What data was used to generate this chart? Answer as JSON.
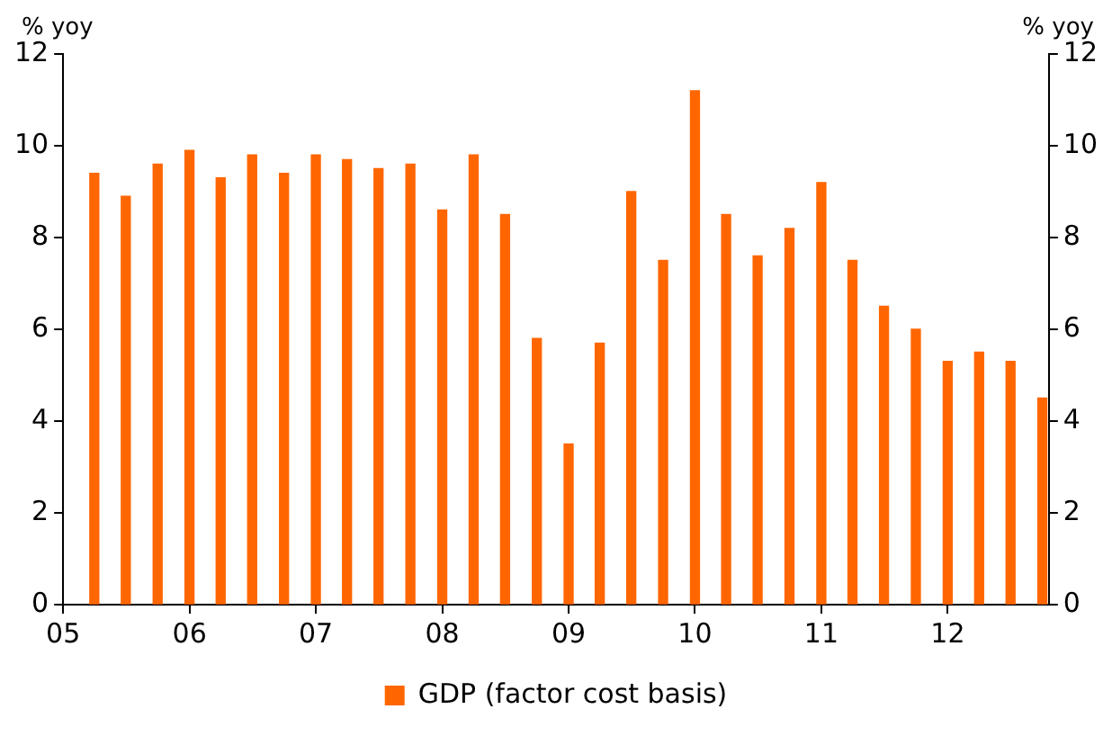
{
  "chart_data": {
    "type": "bar",
    "ylabel": "% yoy",
    "y2label": "% yoy",
    "x": [
      "2005-04",
      "2005-07",
      "2005-10",
      "2006-01",
      "2006-04",
      "2006-07",
      "2006-10",
      "2007-01",
      "2007-04",
      "2007-07",
      "2007-10",
      "2008-01",
      "2008-04",
      "2008-07",
      "2008-10",
      "2009-01",
      "2009-04",
      "2009-07",
      "2009-10",
      "2010-01",
      "2010-04",
      "2010-07",
      "2010-10",
      "2011-01",
      "2011-04",
      "2011-07",
      "2011-10",
      "2012-01",
      "2012-04",
      "2012-07",
      "2012-10"
    ],
    "series": [
      {
        "name": "GDP (factor cost basis)",
        "color": "#ff6600",
        "values": [
          9.4,
          8.9,
          9.6,
          9.9,
          9.3,
          9.8,
          9.4,
          9.8,
          9.7,
          9.5,
          9.6,
          8.6,
          9.8,
          8.5,
          5.8,
          3.5,
          5.7,
          9.0,
          7.5,
          11.2,
          8.5,
          7.6,
          8.2,
          9.2,
          7.5,
          6.5,
          6.0,
          5.3,
          5.5,
          5.3,
          4.5
        ]
      }
    ],
    "xlim": [
      "2005-01",
      "2012-10-20"
    ],
    "xticks": [
      {
        "value": "2005",
        "label": "05"
      },
      {
        "value": "2006",
        "label": "06"
      },
      {
        "value": "2007",
        "label": "07"
      },
      {
        "value": "2008",
        "label": "08"
      },
      {
        "value": "2009",
        "label": "09"
      },
      {
        "value": "2010",
        "label": "10"
      },
      {
        "value": "2011",
        "label": "11"
      },
      {
        "value": "2012",
        "label": "12"
      }
    ],
    "ylim": [
      0,
      12
    ],
    "yticks": [
      0,
      2,
      4,
      6,
      8,
      10,
      12
    ],
    "y2lim": [
      0,
      12
    ],
    "y2ticks": [
      0,
      2,
      4,
      6,
      8,
      10,
      12
    ],
    "grid": false,
    "legend": "bottom"
  }
}
